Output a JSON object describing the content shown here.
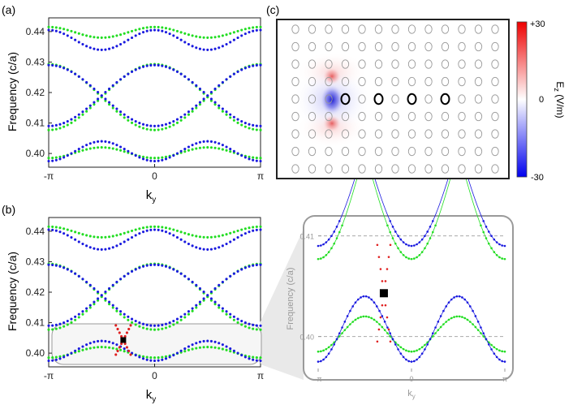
{
  "panels": {
    "a": {
      "label": "(a)"
    },
    "b": {
      "label": "(b)"
    },
    "c": {
      "label": "(c)"
    }
  },
  "colors": {
    "green": "#22dd22",
    "blue": "#1a1adf",
    "red": "#e02020",
    "frame": "#222222",
    "inset_frame": "#9a9a9a",
    "dashed": "#aaaaaa"
  },
  "chart_data": [
    {
      "id": "a",
      "type": "scatter",
      "title": "",
      "xlabel": "k",
      "xlabel_sub": "y",
      "ylabel": "Frequency (c/a)",
      "xlim": [
        -3.14159,
        3.14159
      ],
      "ylim": [
        0.3955,
        0.4445
      ],
      "xticks": [
        -3.14159,
        0,
        3.14159
      ],
      "xtick_labels": [
        "-π",
        "0",
        "π"
      ],
      "yticks": [
        0.4,
        0.41,
        0.42,
        0.43,
        0.44
      ],
      "ytick_labels": [
        "0.40",
        "0.41",
        "0.42",
        "0.43",
        "0.44"
      ],
      "series": [
        {
          "color": "green",
          "bands": [
            {
              "kind": "edge",
              "a": 0.3985,
              "b": 0.402
            },
            {
              "kind": "edge",
              "a": 0.4415,
              "b": 0.438
            },
            {
              "kind": "cos",
              "c": 0.4185,
              "amp": 0.0108,
              "shift": 0
            },
            {
              "kind": "cos",
              "c": 0.4185,
              "amp": 0.0108,
              "shift": 3.14159
            }
          ]
        },
        {
          "color": "blue",
          "bands": [
            {
              "kind": "edge",
              "a": 0.3975,
              "b": 0.404
            },
            {
              "kind": "edge",
              "a": 0.4405,
              "b": 0.434
            },
            {
              "kind": "cos",
              "c": 0.419,
              "amp": 0.01,
              "shift": 0
            },
            {
              "kind": "cos",
              "c": 0.419,
              "amp": 0.01,
              "shift": 3.14159
            }
          ]
        }
      ]
    },
    {
      "id": "b",
      "type": "scatter",
      "title": "",
      "xlabel": "k",
      "xlabel_sub": "y",
      "ylabel": "Frequency (c/a)",
      "xlim": [
        -3.14159,
        3.14159
      ],
      "ylim": [
        0.3955,
        0.4445
      ],
      "xticks": [
        -3.14159,
        0,
        3.14159
      ],
      "xtick_labels": [
        "-π",
        "0",
        "π"
      ],
      "yticks": [
        0.4,
        0.41,
        0.42,
        0.43,
        0.44
      ],
      "ytick_labels": [
        "0.40",
        "0.41",
        "0.42",
        "0.43",
        "0.44"
      ],
      "highlight": {
        "x": -0.93,
        "y": 0.4043,
        "color": "red",
        "marker": "square"
      },
      "series": [
        {
          "color": "green",
          "bands": [
            {
              "kind": "edge",
              "a": 0.3985,
              "b": 0.402
            },
            {
              "kind": "edge",
              "a": 0.4415,
              "b": 0.438
            },
            {
              "kind": "cos",
              "c": 0.4185,
              "amp": 0.0108,
              "shift": 0
            },
            {
              "kind": "cos",
              "c": 0.4185,
              "amp": 0.0108,
              "shift": 3.14159
            }
          ]
        },
        {
          "color": "blue",
          "bands": [
            {
              "kind": "edge",
              "a": 0.3975,
              "b": 0.404
            },
            {
              "kind": "edge",
              "a": 0.4405,
              "b": 0.434
            },
            {
              "kind": "cos",
              "c": 0.419,
              "amp": 0.01,
              "shift": 0
            },
            {
              "kind": "cos",
              "c": 0.419,
              "amp": 0.01,
              "shift": 3.14159
            }
          ]
        }
      ]
    },
    {
      "id": "b-inset",
      "type": "scatter",
      "title": "",
      "xlabel": "k",
      "xlabel_sub": "y",
      "ylabel": "Frequency (c/a)",
      "xlim": [
        -3.14159,
        3.14159
      ],
      "ylim": [
        0.3965,
        0.4115
      ],
      "xticks": [
        -3.14159,
        0,
        3.14159
      ],
      "xtick_labels": [
        "-π",
        "0",
        "π"
      ],
      "yticks": [
        0.4,
        0.41
      ],
      "ytick_labels": [
        "0.40",
        "0.41"
      ],
      "dashed_levels": [
        0.4,
        0.41
      ],
      "highlight": {
        "x": -0.93,
        "y": 0.4043,
        "color": "red",
        "marker": "square"
      },
      "series": [
        {
          "color": "green",
          "bands": [
            {
              "kind": "edge",
              "a": 0.3985,
              "b": 0.402
            },
            {
              "kind": "cos",
              "c": 0.4185,
              "amp": 0.0108,
              "shift": 0
            },
            {
              "kind": "cos",
              "c": 0.4185,
              "amp": 0.0108,
              "shift": 3.14159
            }
          ]
        },
        {
          "color": "blue",
          "bands": [
            {
              "kind": "edge",
              "a": 0.3975,
              "b": 0.404
            },
            {
              "kind": "cos",
              "c": 0.419,
              "amp": 0.01,
              "shift": 0
            },
            {
              "kind": "cos",
              "c": 0.419,
              "amp": 0.01,
              "shift": 3.14159
            }
          ]
        }
      ]
    },
    {
      "id": "c",
      "type": "heatmap",
      "title": "",
      "colorbar": {
        "label": "E",
        "label_sub": "z",
        "unit": " (V/m)",
        "max_label": "+30",
        "mid_label": "0",
        "min_label": "-30",
        "range": [
          -30,
          30
        ],
        "cmap": [
          "#0000ee",
          "#ffffff",
          "#ee0000"
        ]
      },
      "lattice": {
        "cols": 13,
        "rows": 9
      },
      "defect_rods": [
        {
          "col": 3,
          "row": 4
        },
        {
          "col": 5,
          "row": 4
        },
        {
          "col": 7,
          "row": 4
        },
        {
          "col": 9,
          "row": 4
        }
      ],
      "field_source": {
        "col": 3,
        "row": 4
      }
    }
  ]
}
